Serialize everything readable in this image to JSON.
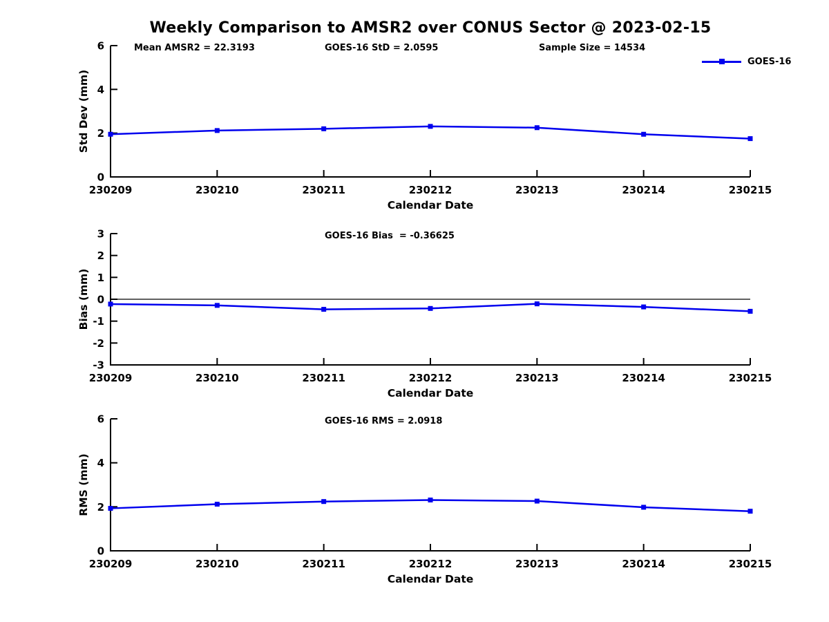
{
  "title": "Weekly Comparison to AMSR2 over CONUS Sector @ 2023-02-15",
  "legend": {
    "label": "GOES-16",
    "color": "#0000EE",
    "marker": "square"
  },
  "colors": {
    "line": "#0000EE",
    "axis": "#000000",
    "zero_line": "#000000",
    "background": "#FFFFFF",
    "text": "#000000"
  },
  "stats": {
    "mean_amsr2": 22.3193,
    "goes16_std": 2.0595,
    "sample_size": 14534,
    "goes16_bias": -0.36625,
    "goes16_rms": 2.0918
  },
  "chart_data": [
    {
      "type": "line",
      "title": "",
      "ylabel": "Std Dev (mm)",
      "xlabel": "Calendar Date",
      "ylim": [
        0,
        6
      ],
      "yticks": [
        0,
        2,
        4,
        6
      ],
      "grid": false,
      "zero_line": false,
      "legend_position": "top-right-outside",
      "categories": [
        "230209",
        "230210",
        "230211",
        "230212",
        "230213",
        "230214",
        "230215"
      ],
      "series": [
        {
          "name": "GOES-16",
          "values": [
            1.95,
            2.12,
            2.2,
            2.31,
            2.25,
            1.95,
            1.75
          ]
        }
      ],
      "annotations": [
        "Mean AMSR2 = 22.3193",
        "GOES-16 StD = 2.0595",
        "Sample Size = 14534"
      ]
    },
    {
      "type": "line",
      "title": "",
      "ylabel": "Bias (mm)",
      "xlabel": "Calendar Date",
      "ylim": [
        -3,
        3
      ],
      "yticks": [
        3,
        2,
        1,
        0,
        -1,
        -2,
        -3
      ],
      "grid": false,
      "zero_line": true,
      "categories": [
        "230209",
        "230210",
        "230211",
        "230212",
        "230213",
        "230214",
        "230215"
      ],
      "series": [
        {
          "name": "GOES-16",
          "values": [
            -0.22,
            -0.28,
            -0.46,
            -0.42,
            -0.21,
            -0.35,
            -0.55
          ]
        }
      ],
      "annotations": [
        "GOES-16 Bias  = -0.36625"
      ]
    },
    {
      "type": "line",
      "title": "",
      "ylabel": "RMS (mm)",
      "xlabel": "Calendar Date",
      "ylim": [
        0,
        6
      ],
      "yticks": [
        0,
        2,
        4,
        6
      ],
      "grid": false,
      "zero_line": false,
      "categories": [
        "230209",
        "230210",
        "230211",
        "230212",
        "230213",
        "230214",
        "230215"
      ],
      "series": [
        {
          "name": "GOES-16",
          "values": [
            1.93,
            2.12,
            2.24,
            2.31,
            2.26,
            1.98,
            1.8
          ]
        }
      ],
      "annotations": [
        "GOES-16 RMS = 2.0918"
      ]
    }
  ]
}
